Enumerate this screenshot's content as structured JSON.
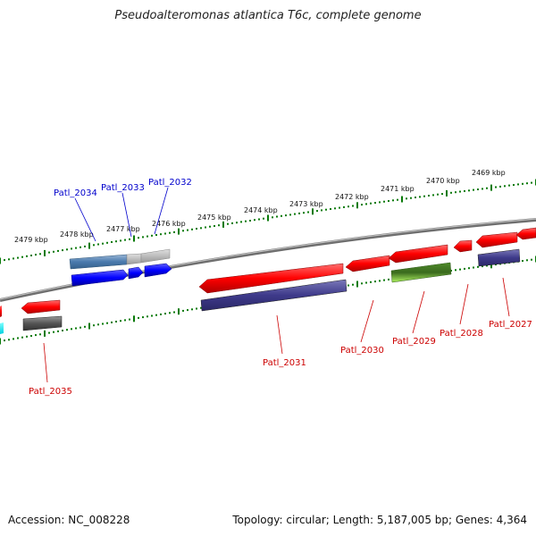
{
  "title": "Pseudoalteromonas atlantica T6c, complete genome",
  "footer": {
    "accession": "Accession: NC_008228",
    "summary": "Topology: circular; Length: 5,187,005 bp; Genes: 4,364"
  },
  "scale_labels": [
    "2479 kbp",
    "2478 kbp",
    "2477 kbp",
    "2476 kbp",
    "2475 kbp",
    "2474 kbp",
    "2473 kbp",
    "2472 kbp",
    "2471 kbp",
    "2470 kbp",
    "2469 kbp"
  ],
  "gene_labels": {
    "forward": [
      "Patl_2034",
      "Patl_2033",
      "Patl_2032"
    ],
    "reverse": [
      "Patl_2035",
      "Patl_2031",
      "Patl_2030",
      "Patl_2029",
      "Patl_2028",
      "Patl_2027"
    ]
  },
  "colors": {
    "forward_label": "#0000cc",
    "reverse_label": "#cc0000",
    "cds": "#ff0000",
    "forward_cds": "#0000ff",
    "tick": "#007700",
    "backbone": "#808080"
  }
}
